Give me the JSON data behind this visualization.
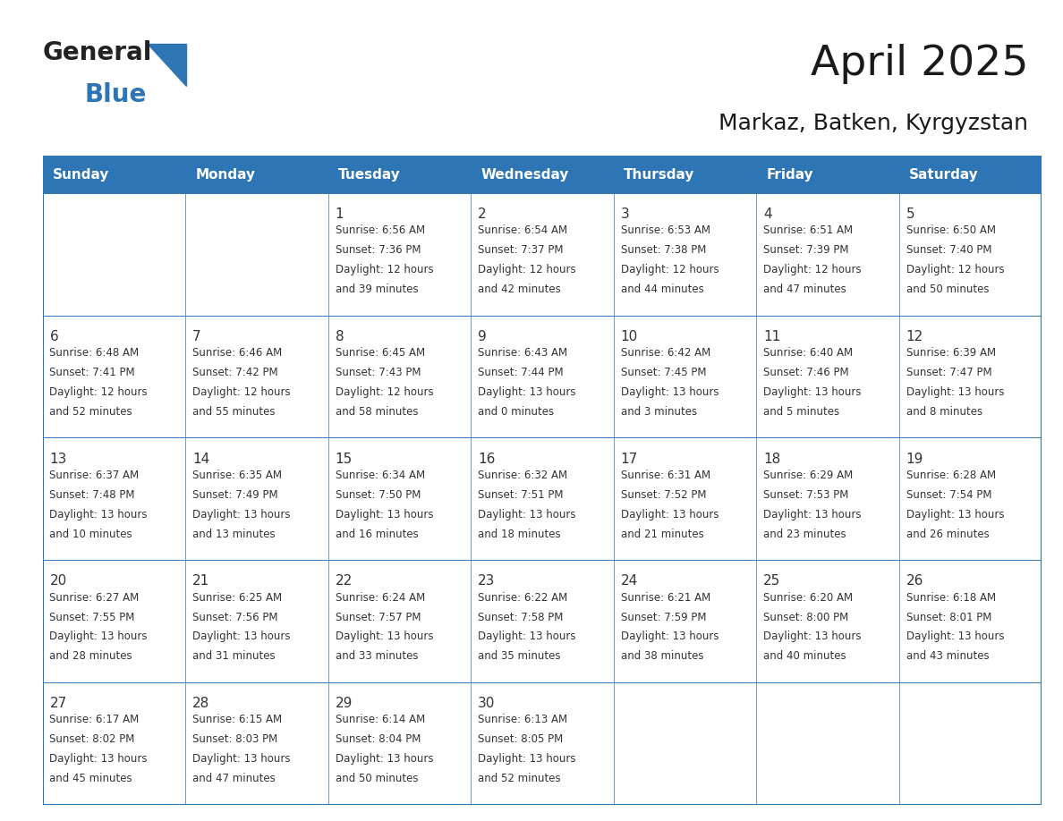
{
  "title": "April 2025",
  "subtitle": "Markaz, Batken, Kyrgyzstan",
  "header_color": "#2E75B6",
  "header_text_color": "#FFFFFF",
  "cell_bg_color": "#FFFFFF",
  "alt_cell_bg_color": "#F2F2F2",
  "border_color": "#2E75B6",
  "text_color": "#333333",
  "days_of_week": [
    "Sunday",
    "Monday",
    "Tuesday",
    "Wednesday",
    "Thursday",
    "Friday",
    "Saturday"
  ],
  "weeks": [
    [
      {
        "day": null,
        "data": null
      },
      {
        "day": null,
        "data": null
      },
      {
        "day": 1,
        "data": {
          "sunrise": "6:56 AM",
          "sunset": "7:36 PM",
          "daylight": "12 hours and 39 minutes"
        }
      },
      {
        "day": 2,
        "data": {
          "sunrise": "6:54 AM",
          "sunset": "7:37 PM",
          "daylight": "12 hours and 42 minutes"
        }
      },
      {
        "day": 3,
        "data": {
          "sunrise": "6:53 AM",
          "sunset": "7:38 PM",
          "daylight": "12 hours and 44 minutes"
        }
      },
      {
        "day": 4,
        "data": {
          "sunrise": "6:51 AM",
          "sunset": "7:39 PM",
          "daylight": "12 hours and 47 minutes"
        }
      },
      {
        "day": 5,
        "data": {
          "sunrise": "6:50 AM",
          "sunset": "7:40 PM",
          "daylight": "12 hours and 50 minutes"
        }
      }
    ],
    [
      {
        "day": 6,
        "data": {
          "sunrise": "6:48 AM",
          "sunset": "7:41 PM",
          "daylight": "12 hours and 52 minutes"
        }
      },
      {
        "day": 7,
        "data": {
          "sunrise": "6:46 AM",
          "sunset": "7:42 PM",
          "daylight": "12 hours and 55 minutes"
        }
      },
      {
        "day": 8,
        "data": {
          "sunrise": "6:45 AM",
          "sunset": "7:43 PM",
          "daylight": "12 hours and 58 minutes"
        }
      },
      {
        "day": 9,
        "data": {
          "sunrise": "6:43 AM",
          "sunset": "7:44 PM",
          "daylight": "13 hours and 0 minutes"
        }
      },
      {
        "day": 10,
        "data": {
          "sunrise": "6:42 AM",
          "sunset": "7:45 PM",
          "daylight": "13 hours and 3 minutes"
        }
      },
      {
        "day": 11,
        "data": {
          "sunrise": "6:40 AM",
          "sunset": "7:46 PM",
          "daylight": "13 hours and 5 minutes"
        }
      },
      {
        "day": 12,
        "data": {
          "sunrise": "6:39 AM",
          "sunset": "7:47 PM",
          "daylight": "13 hours and 8 minutes"
        }
      }
    ],
    [
      {
        "day": 13,
        "data": {
          "sunrise": "6:37 AM",
          "sunset": "7:48 PM",
          "daylight": "13 hours and 10 minutes"
        }
      },
      {
        "day": 14,
        "data": {
          "sunrise": "6:35 AM",
          "sunset": "7:49 PM",
          "daylight": "13 hours and 13 minutes"
        }
      },
      {
        "day": 15,
        "data": {
          "sunrise": "6:34 AM",
          "sunset": "7:50 PM",
          "daylight": "13 hours and 16 minutes"
        }
      },
      {
        "day": 16,
        "data": {
          "sunrise": "6:32 AM",
          "sunset": "7:51 PM",
          "daylight": "13 hours and 18 minutes"
        }
      },
      {
        "day": 17,
        "data": {
          "sunrise": "6:31 AM",
          "sunset": "7:52 PM",
          "daylight": "13 hours and 21 minutes"
        }
      },
      {
        "day": 18,
        "data": {
          "sunrise": "6:29 AM",
          "sunset": "7:53 PM",
          "daylight": "13 hours and 23 minutes"
        }
      },
      {
        "day": 19,
        "data": {
          "sunrise": "6:28 AM",
          "sunset": "7:54 PM",
          "daylight": "13 hours and 26 minutes"
        }
      }
    ],
    [
      {
        "day": 20,
        "data": {
          "sunrise": "6:27 AM",
          "sunset": "7:55 PM",
          "daylight": "13 hours and 28 minutes"
        }
      },
      {
        "day": 21,
        "data": {
          "sunrise": "6:25 AM",
          "sunset": "7:56 PM",
          "daylight": "13 hours and 31 minutes"
        }
      },
      {
        "day": 22,
        "data": {
          "sunrise": "6:24 AM",
          "sunset": "7:57 PM",
          "daylight": "13 hours and 33 minutes"
        }
      },
      {
        "day": 23,
        "data": {
          "sunrise": "6:22 AM",
          "sunset": "7:58 PM",
          "daylight": "13 hours and 35 minutes"
        }
      },
      {
        "day": 24,
        "data": {
          "sunrise": "6:21 AM",
          "sunset": "7:59 PM",
          "daylight": "13 hours and 38 minutes"
        }
      },
      {
        "day": 25,
        "data": {
          "sunrise": "6:20 AM",
          "sunset": "8:00 PM",
          "daylight": "13 hours and 40 minutes"
        }
      },
      {
        "day": 26,
        "data": {
          "sunrise": "6:18 AM",
          "sunset": "8:01 PM",
          "daylight": "13 hours and 43 minutes"
        }
      }
    ],
    [
      {
        "day": 27,
        "data": {
          "sunrise": "6:17 AM",
          "sunset": "8:02 PM",
          "daylight": "13 hours and 45 minutes"
        }
      },
      {
        "day": 28,
        "data": {
          "sunrise": "6:15 AM",
          "sunset": "8:03 PM",
          "daylight": "13 hours and 47 minutes"
        }
      },
      {
        "day": 29,
        "data": {
          "sunrise": "6:14 AM",
          "sunset": "8:04 PM",
          "daylight": "13 hours and 50 minutes"
        }
      },
      {
        "day": 30,
        "data": {
          "sunrise": "6:13 AM",
          "sunset": "8:05 PM",
          "daylight": "13 hours and 52 minutes"
        }
      },
      {
        "day": null,
        "data": null
      },
      {
        "day": null,
        "data": null
      },
      {
        "day": null,
        "data": null
      }
    ]
  ],
  "logo_text_general": "General",
  "logo_text_blue": "Blue",
  "logo_color_general": "#222222",
  "logo_color_blue": "#2E75B6",
  "logo_triangle_color": "#2E75B6"
}
